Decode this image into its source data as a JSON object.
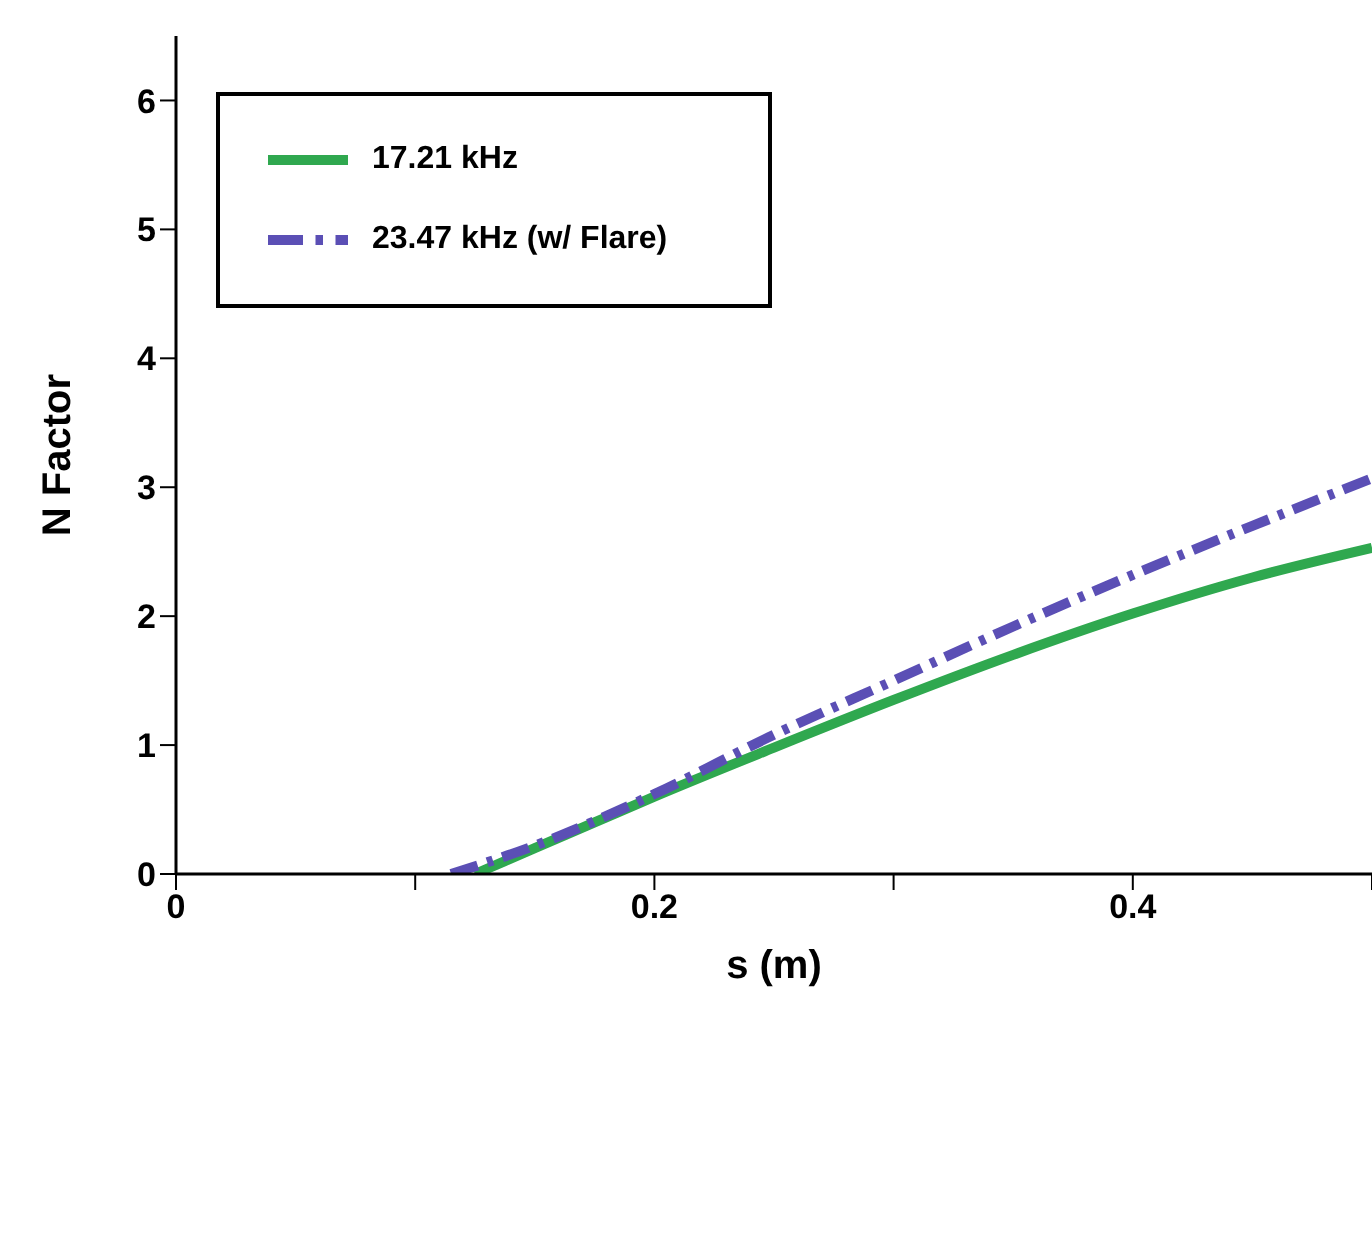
{
  "chart_data": {
    "type": "line",
    "xlabel": "s (m)",
    "ylabel": "N Factor",
    "xlim": [
      0,
      0.5
    ],
    "ylim": [
      0,
      6.5
    ],
    "xticks": [
      0,
      {
        "value": 0.1,
        "label": null
      },
      0.2,
      {
        "value": 0.3,
        "label": null
      },
      0.4,
      {
        "value": 0.5,
        "label": null
      }
    ],
    "yticks": [
      0,
      1,
      2,
      3,
      4,
      5,
      6
    ],
    "grid": false,
    "legend": "top left",
    "marker": "none",
    "series": [
      {
        "name": "17.21 kHz",
        "color": "#2fa84f",
        "line_style": "solid",
        "x": [
          0.125,
          0.15,
          0.175,
          0.2,
          0.25,
          0.3,
          0.35,
          0.4,
          0.45,
          0.5
        ],
        "values": [
          0,
          0.2,
          0.4,
          0.6,
          0.98,
          1.35,
          1.7,
          2.02,
          2.3,
          2.53
        ]
      },
      {
        "name": "23.47 kHz (w/ Flare)",
        "color": "#5b4fb5",
        "line_style": "dashed",
        "x": [
          0.115,
          0.15,
          0.2,
          0.25,
          0.3,
          0.35,
          0.4,
          0.45,
          0.5
        ],
        "values": [
          0,
          0.22,
          0.62,
          1.08,
          1.5,
          1.92,
          2.32,
          2.7,
          3.07
        ]
      }
    ]
  }
}
